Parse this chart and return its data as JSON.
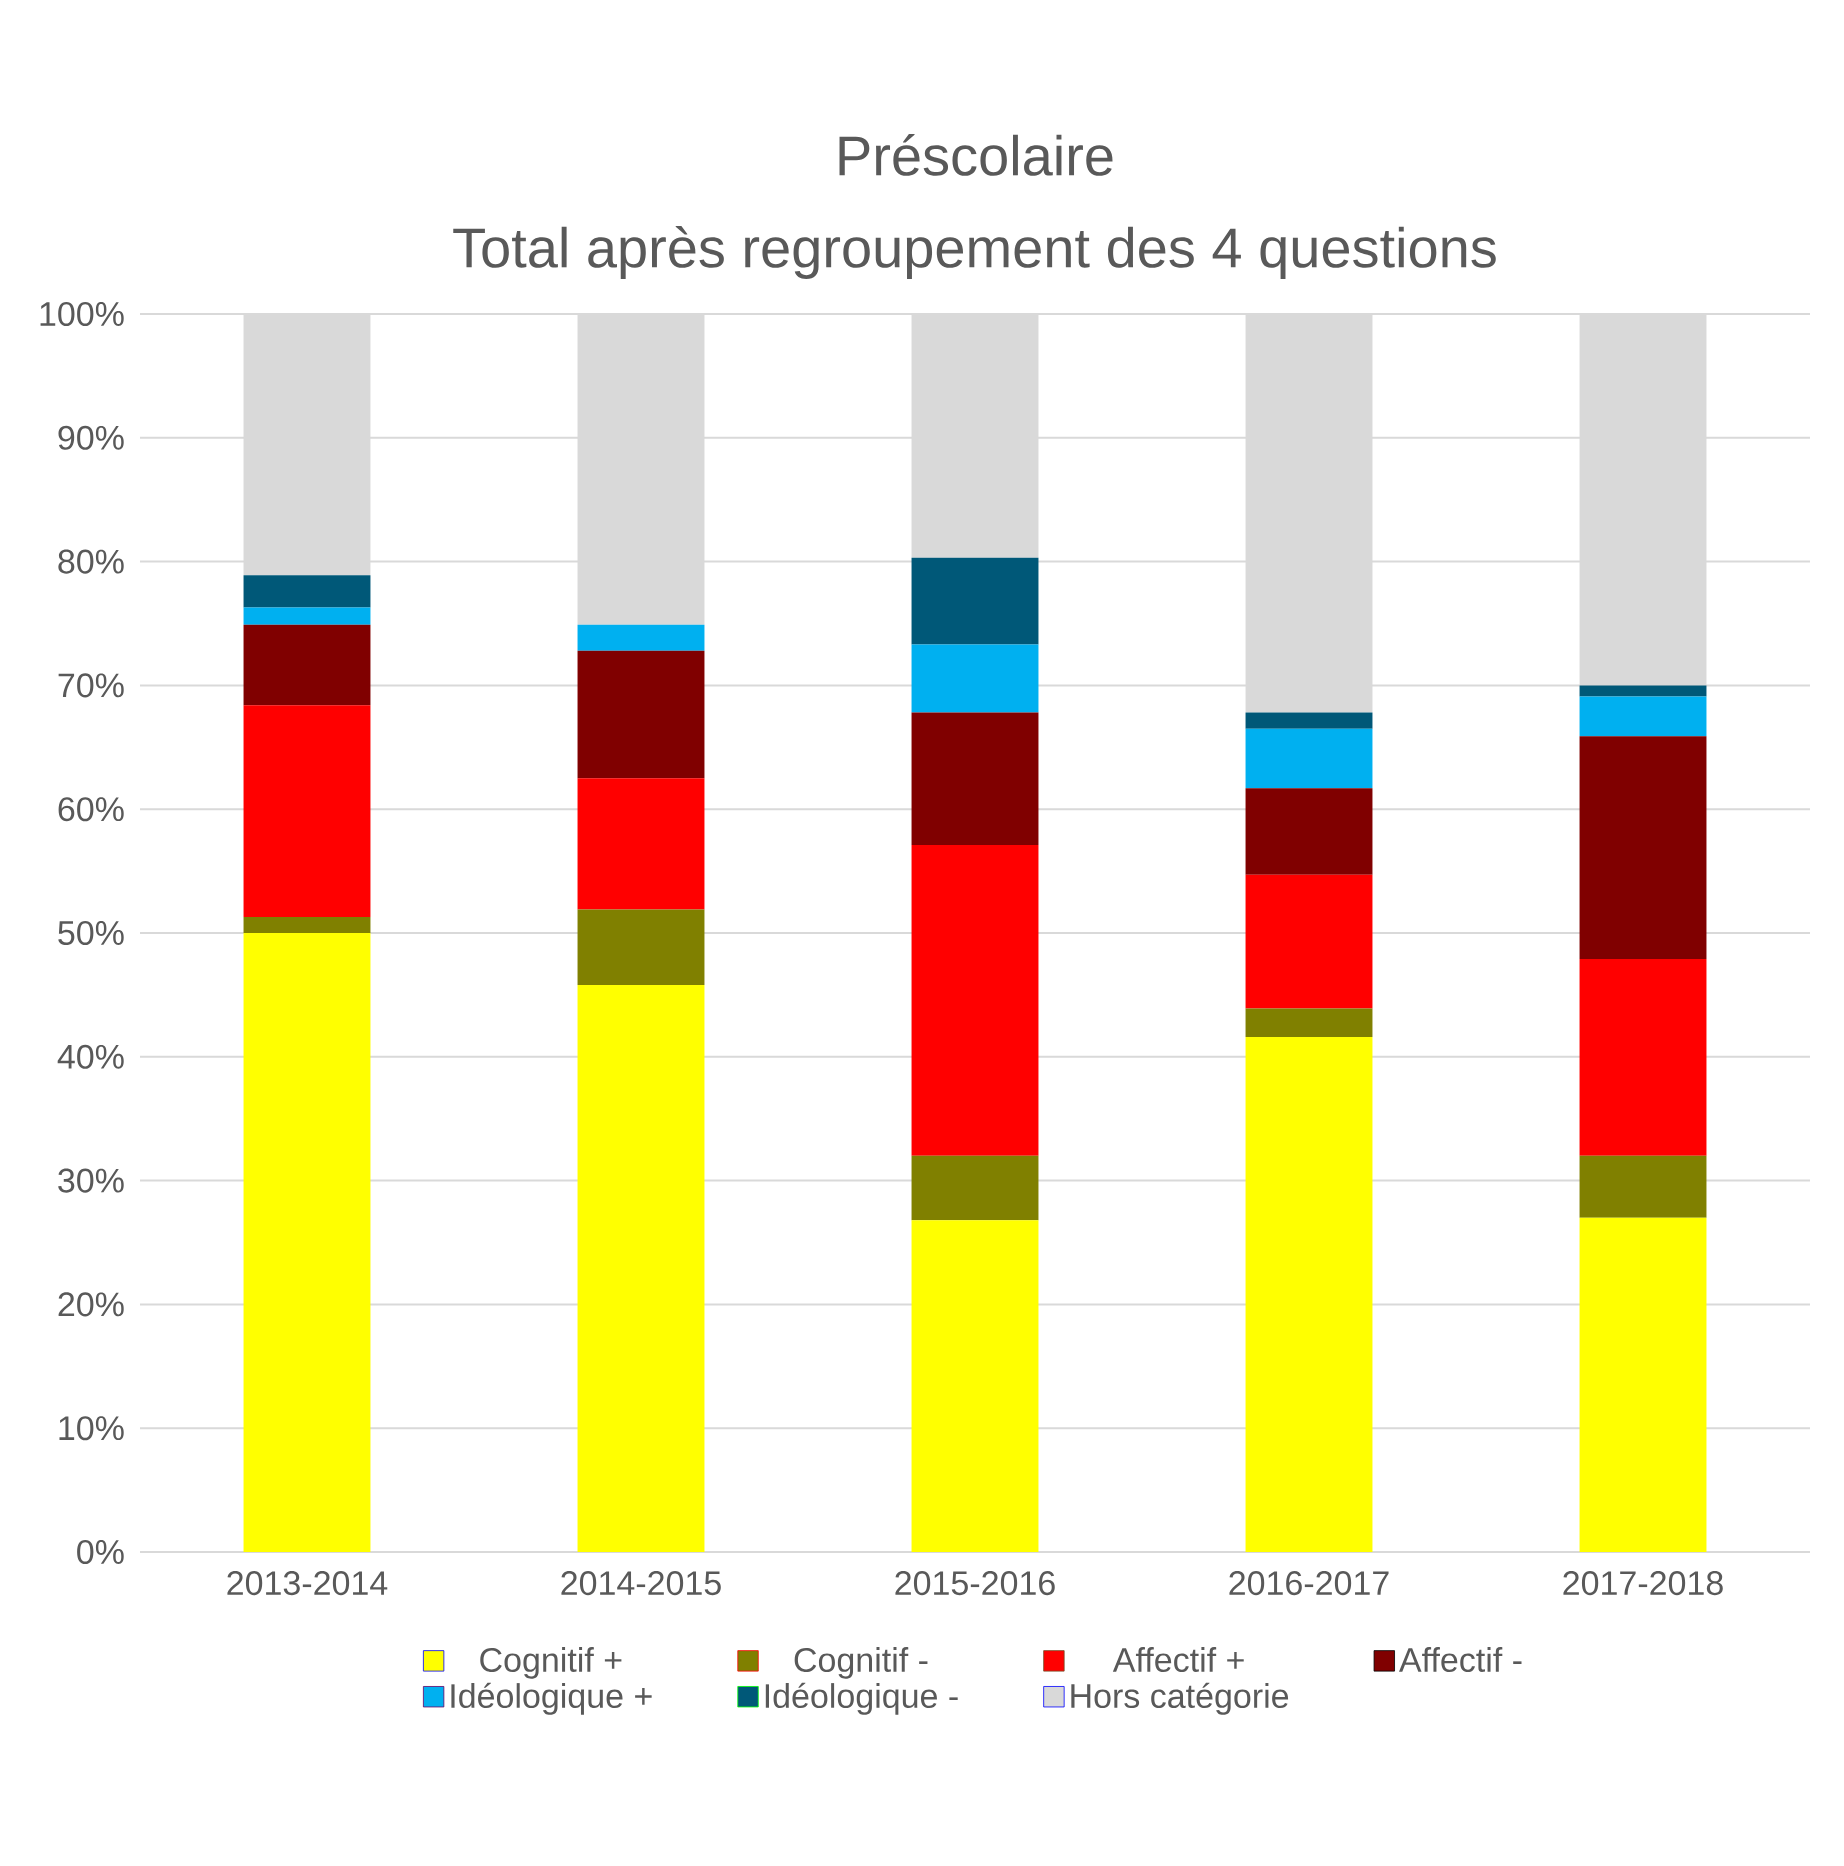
{
  "chart_data": {
    "type": "bar",
    "stacked": true,
    "title": "Préscolaire",
    "subtitle": "Total après regroupement des 4 questions",
    "categories": [
      "2013-2014",
      "2014-2015",
      "2015-2016",
      "2016-2017",
      "2017-2018"
    ],
    "series": [
      {
        "name": "Cognitif +",
        "color": "#ffff00",
        "values": [
          50,
          45.8,
          26.8,
          41.6,
          27
        ]
      },
      {
        "name": "Cognitif -",
        "color": "#808000",
        "values": [
          1.3,
          6.1,
          5.2,
          2.3,
          5
        ]
      },
      {
        "name": "Affectif +",
        "color": "#ff0000",
        "values": [
          17.1,
          10.6,
          25.1,
          10.8,
          15.9
        ]
      },
      {
        "name": "Affectif -",
        "color": "#800000",
        "values": [
          6.5,
          10.3,
          10.7,
          7.0,
          18
        ]
      },
      {
        "name": "Idéologique +",
        "color": "#00b0f0",
        "values": [
          1.4,
          2.1,
          5.5,
          4.8,
          3.2
        ]
      },
      {
        "name": "Idéologique -",
        "color": "#005878",
        "values": [
          2.6,
          0,
          7.0,
          1.3,
          0.9
        ]
      },
      {
        "name": "Hors catégorie",
        "color": "#d9d9d9",
        "values": [
          21.1,
          25.1,
          19.7,
          32.2,
          30
        ]
      }
    ],
    "ylim": [
      0,
      100
    ],
    "yticks": [
      {
        "value": 0,
        "label": "0%"
      },
      {
        "value": 10,
        "label": "10%"
      },
      {
        "value": 20,
        "label": "20%"
      },
      {
        "value": 30,
        "label": "30%"
      },
      {
        "value": 40,
        "label": "40%"
      },
      {
        "value": 50,
        "label": "50%"
      },
      {
        "value": 60,
        "label": "60%"
      },
      {
        "value": 70,
        "label": "70%"
      },
      {
        "value": 80,
        "label": "80%"
      },
      {
        "value": 90,
        "label": "90%"
      },
      {
        "value": 100,
        "label": "100%"
      }
    ],
    "grid": "y",
    "legend": "bottom"
  }
}
